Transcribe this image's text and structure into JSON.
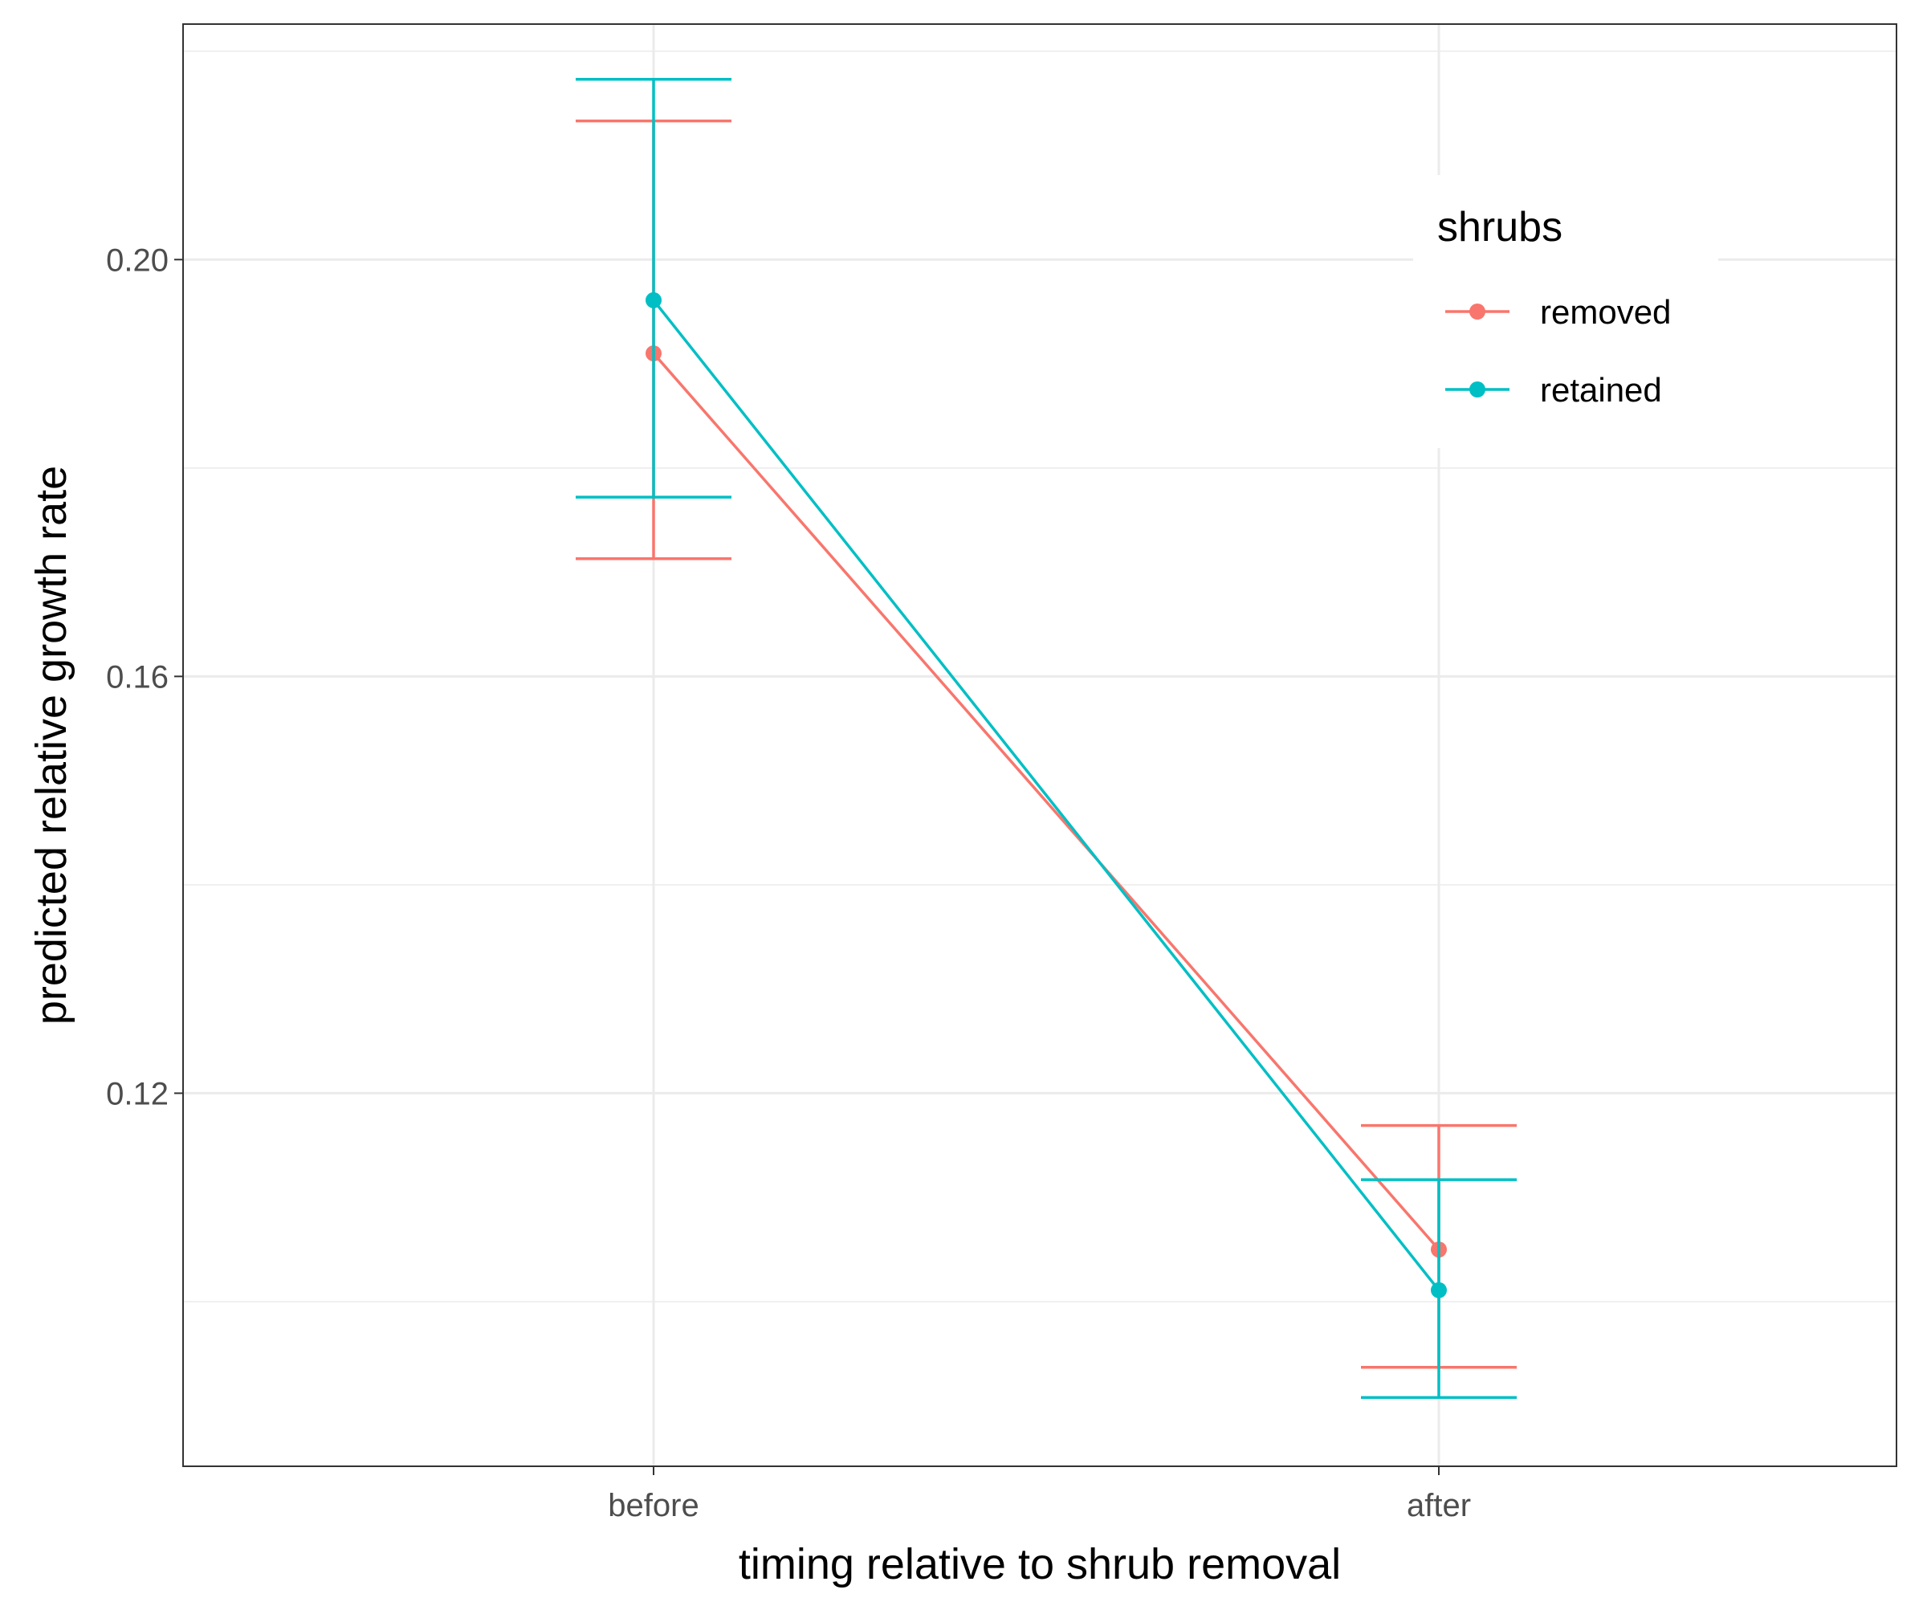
{
  "chart_data": {
    "type": "line",
    "xlabel": "timing relative to shrub removal",
    "ylabel": "predicted relative growth rate",
    "categories": [
      "before",
      "after"
    ],
    "ylim": [
      0.0842,
      0.2226
    ],
    "y_ticks": [
      0.12,
      0.16,
      0.2
    ],
    "y_tick_labels": [
      "0.12",
      "0.16",
      "0.20"
    ],
    "y_minor_ticks": [
      0.1,
      0.14,
      0.18,
      0.22
    ],
    "grid": true,
    "legend": {
      "title": "shrubs",
      "position": "top-right",
      "entries": [
        "removed",
        "retained"
      ]
    },
    "series": [
      {
        "name": "removed",
        "color": "#F8766D",
        "values": [
          0.191,
          0.105
        ],
        "lower": [
          0.1713,
          0.0937
        ],
        "upper": [
          0.2133,
          0.1169
        ]
      },
      {
        "name": "retained",
        "color": "#00BFC4",
        "values": [
          0.1961,
          0.1011
        ],
        "lower": [
          0.1772,
          0.0908
        ],
        "upper": [
          0.2173,
          0.1117
        ]
      }
    ]
  }
}
